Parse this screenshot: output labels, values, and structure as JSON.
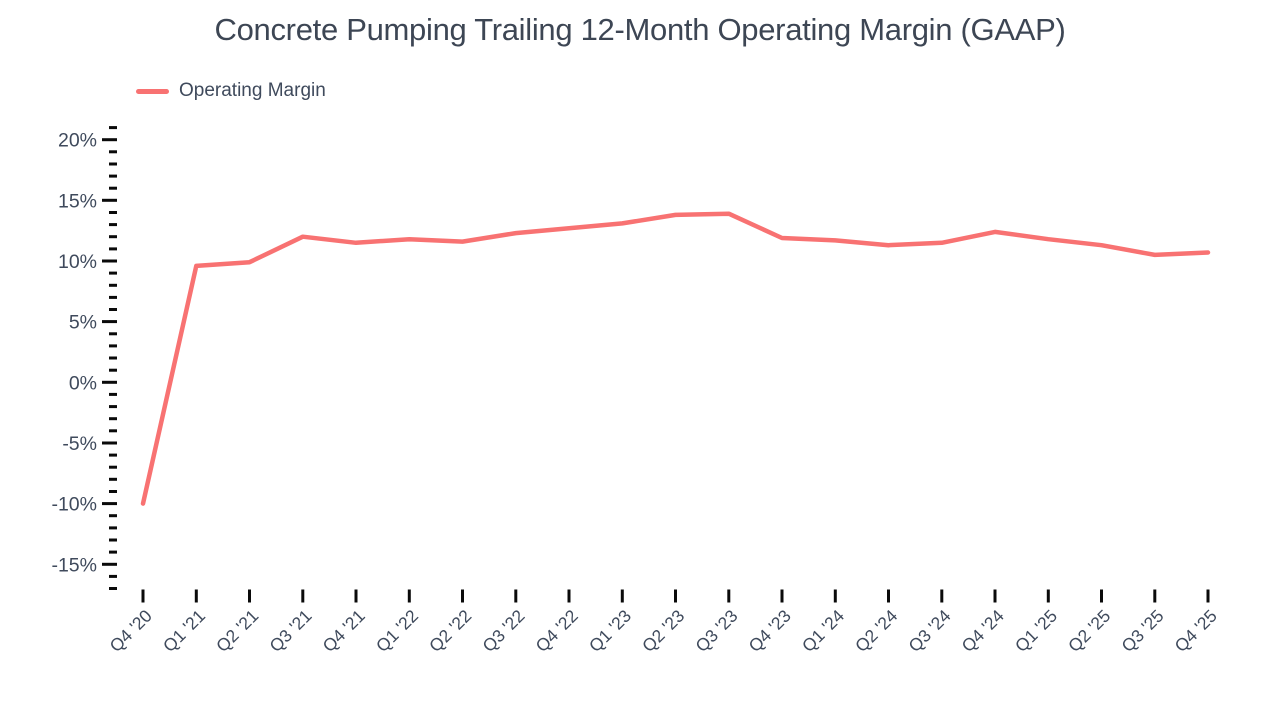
{
  "header": {
    "title": "Concrete Pumping Trailing 12-Month Operating Margin (GAAP)"
  },
  "legend": {
    "items": [
      {
        "label": "Operating Margin",
        "color": "#F87272"
      }
    ]
  },
  "chart_data": {
    "type": "line",
    "title": "Concrete Pumping Trailing 12-Month Operating Margin (GAAP)",
    "categories": [
      "Q4 '20",
      "Q1 '21",
      "Q2 '21",
      "Q3 '21",
      "Q4 '21",
      "Q1 '22",
      "Q2 '22",
      "Q3 '22",
      "Q4 '22",
      "Q1 '23",
      "Q2 '23",
      "Q3 '23",
      "Q4 '23",
      "Q1 '24",
      "Q2 '24",
      "Q3 '24",
      "Q4 '24",
      "Q1 '25",
      "Q2 '25",
      "Q3 '25",
      "Q4 '25"
    ],
    "series": [
      {
        "name": "Operating Margin",
        "color": "#F87272",
        "values": [
          -10.0,
          9.6,
          9.9,
          12.0,
          11.5,
          11.8,
          11.6,
          12.3,
          12.7,
          13.1,
          13.8,
          13.9,
          11.9,
          11.7,
          11.3,
          11.5,
          12.4,
          11.8,
          11.3,
          10.5,
          10.7
        ]
      }
    ],
    "xlabel": "",
    "ylabel": "",
    "y_ticks": {
      "labels": [
        "20%",
        "15%",
        "10%",
        "5%",
        "0%",
        "-5%",
        "-10%",
        "-15%"
      ],
      "values": [
        20,
        15,
        10,
        5,
        0,
        -5,
        -10,
        -15
      ]
    },
    "ylim": [
      -17,
      21
    ],
    "y_minor_step": 1,
    "grid": false,
    "legend_position": "top-left",
    "colors": {
      "line": "#F87272",
      "text": "#3F4A5C",
      "tick": "#0a0a0a"
    }
  }
}
